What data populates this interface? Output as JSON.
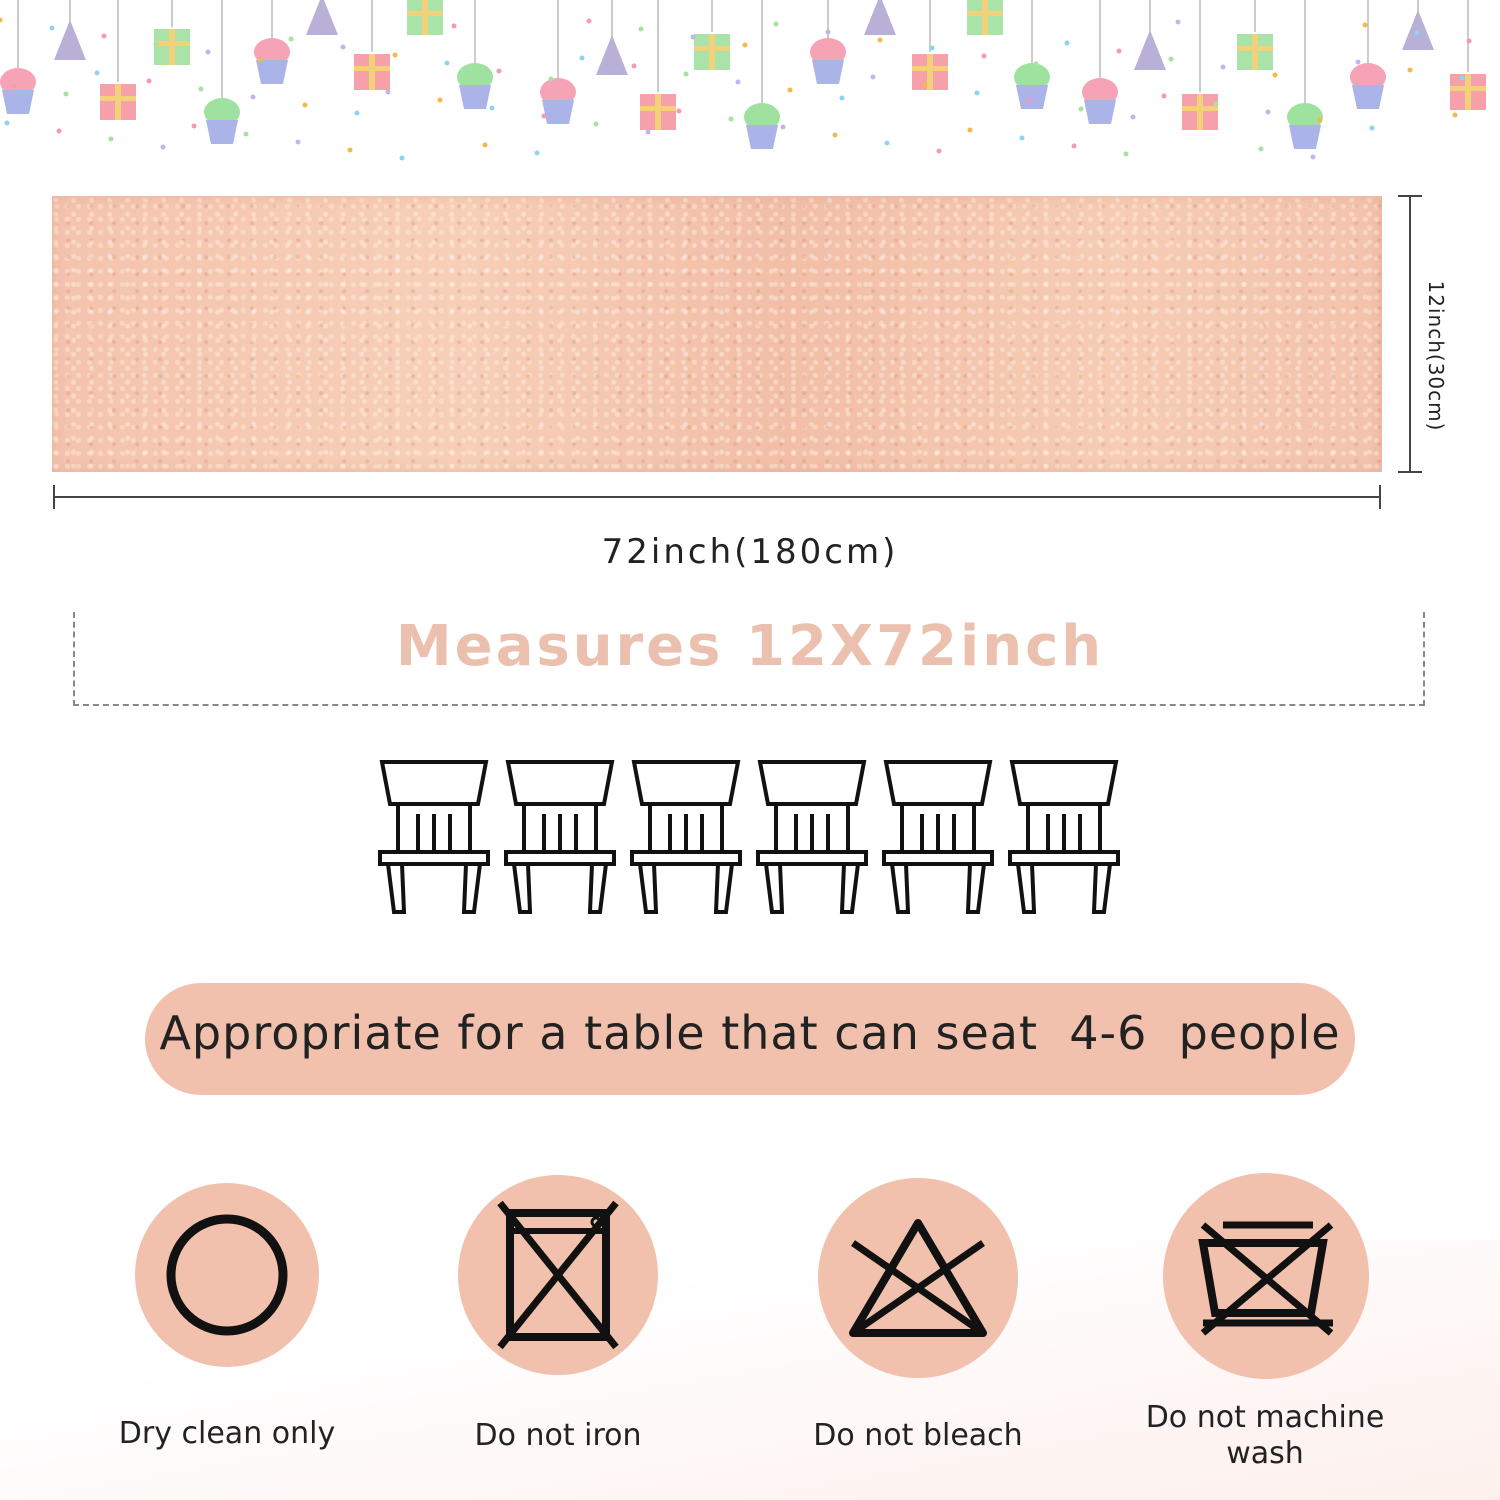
{
  "colors": {
    "accent_pink": "#f1c1ad",
    "measure_text": "#ebc0ae",
    "runner": "#f4c3ad",
    "line": "#222222"
  },
  "dimensions": {
    "width_label": "72inch(180cm)",
    "height_label": "12inch(30cm)"
  },
  "measure": {
    "text": "Measures 12X72inch"
  },
  "chairs": {
    "count": 6,
    "icon": "chair-icon"
  },
  "seating": {
    "text": "Appropriate for a table that can seat  4-6  people"
  },
  "care": [
    {
      "icon": "dry-clean-icon",
      "label": "Dry clean only"
    },
    {
      "icon": "no-iron-icon",
      "label": "Do not iron"
    },
    {
      "icon": "no-bleach-icon",
      "label": "Do not bleach"
    },
    {
      "icon": "no-machine-wash-icon",
      "label": "Do not machine wash"
    }
  ]
}
